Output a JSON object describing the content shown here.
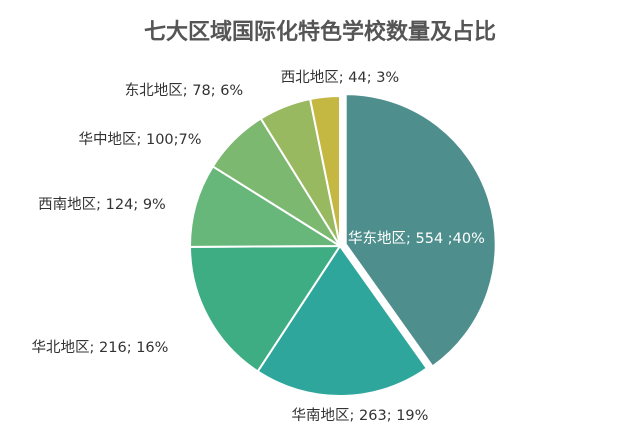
{
  "chart_data": {
    "type": "pie",
    "title": "七大区域国际化特色学校数量及占比",
    "slices": [
      {
        "name": "华东地区",
        "value": 554,
        "label": "华东地区; 554 ;40%",
        "color": "#4e8f8d"
      },
      {
        "name": "华南地区",
        "value": 263,
        "label": "华南地区; 263; 19%",
        "color": "#2fa69c"
      },
      {
        "name": "华北地区",
        "value": 216,
        "label": "华北地区; 216; 16%",
        "color": "#3fad84"
      },
      {
        "name": "西南地区",
        "value": 124,
        "label": "西南地区; 124; 9%",
        "color": "#67b77a"
      },
      {
        "name": "华中地区",
        "value": 100,
        "label": "华中地区; 100;7%",
        "color": "#7cb86f"
      },
      {
        "name": "东北地区",
        "value": 78,
        "label": "东北地区; 78; 6%",
        "color": "#98b95f"
      },
      {
        "name": "西北地区",
        "value": 44,
        "label": "西北地区; 44; 3%",
        "color": "#c4b843"
      }
    ],
    "start_angle": "12 o'clock",
    "direction": "clockwise",
    "exploded_slice": "华东地区"
  }
}
